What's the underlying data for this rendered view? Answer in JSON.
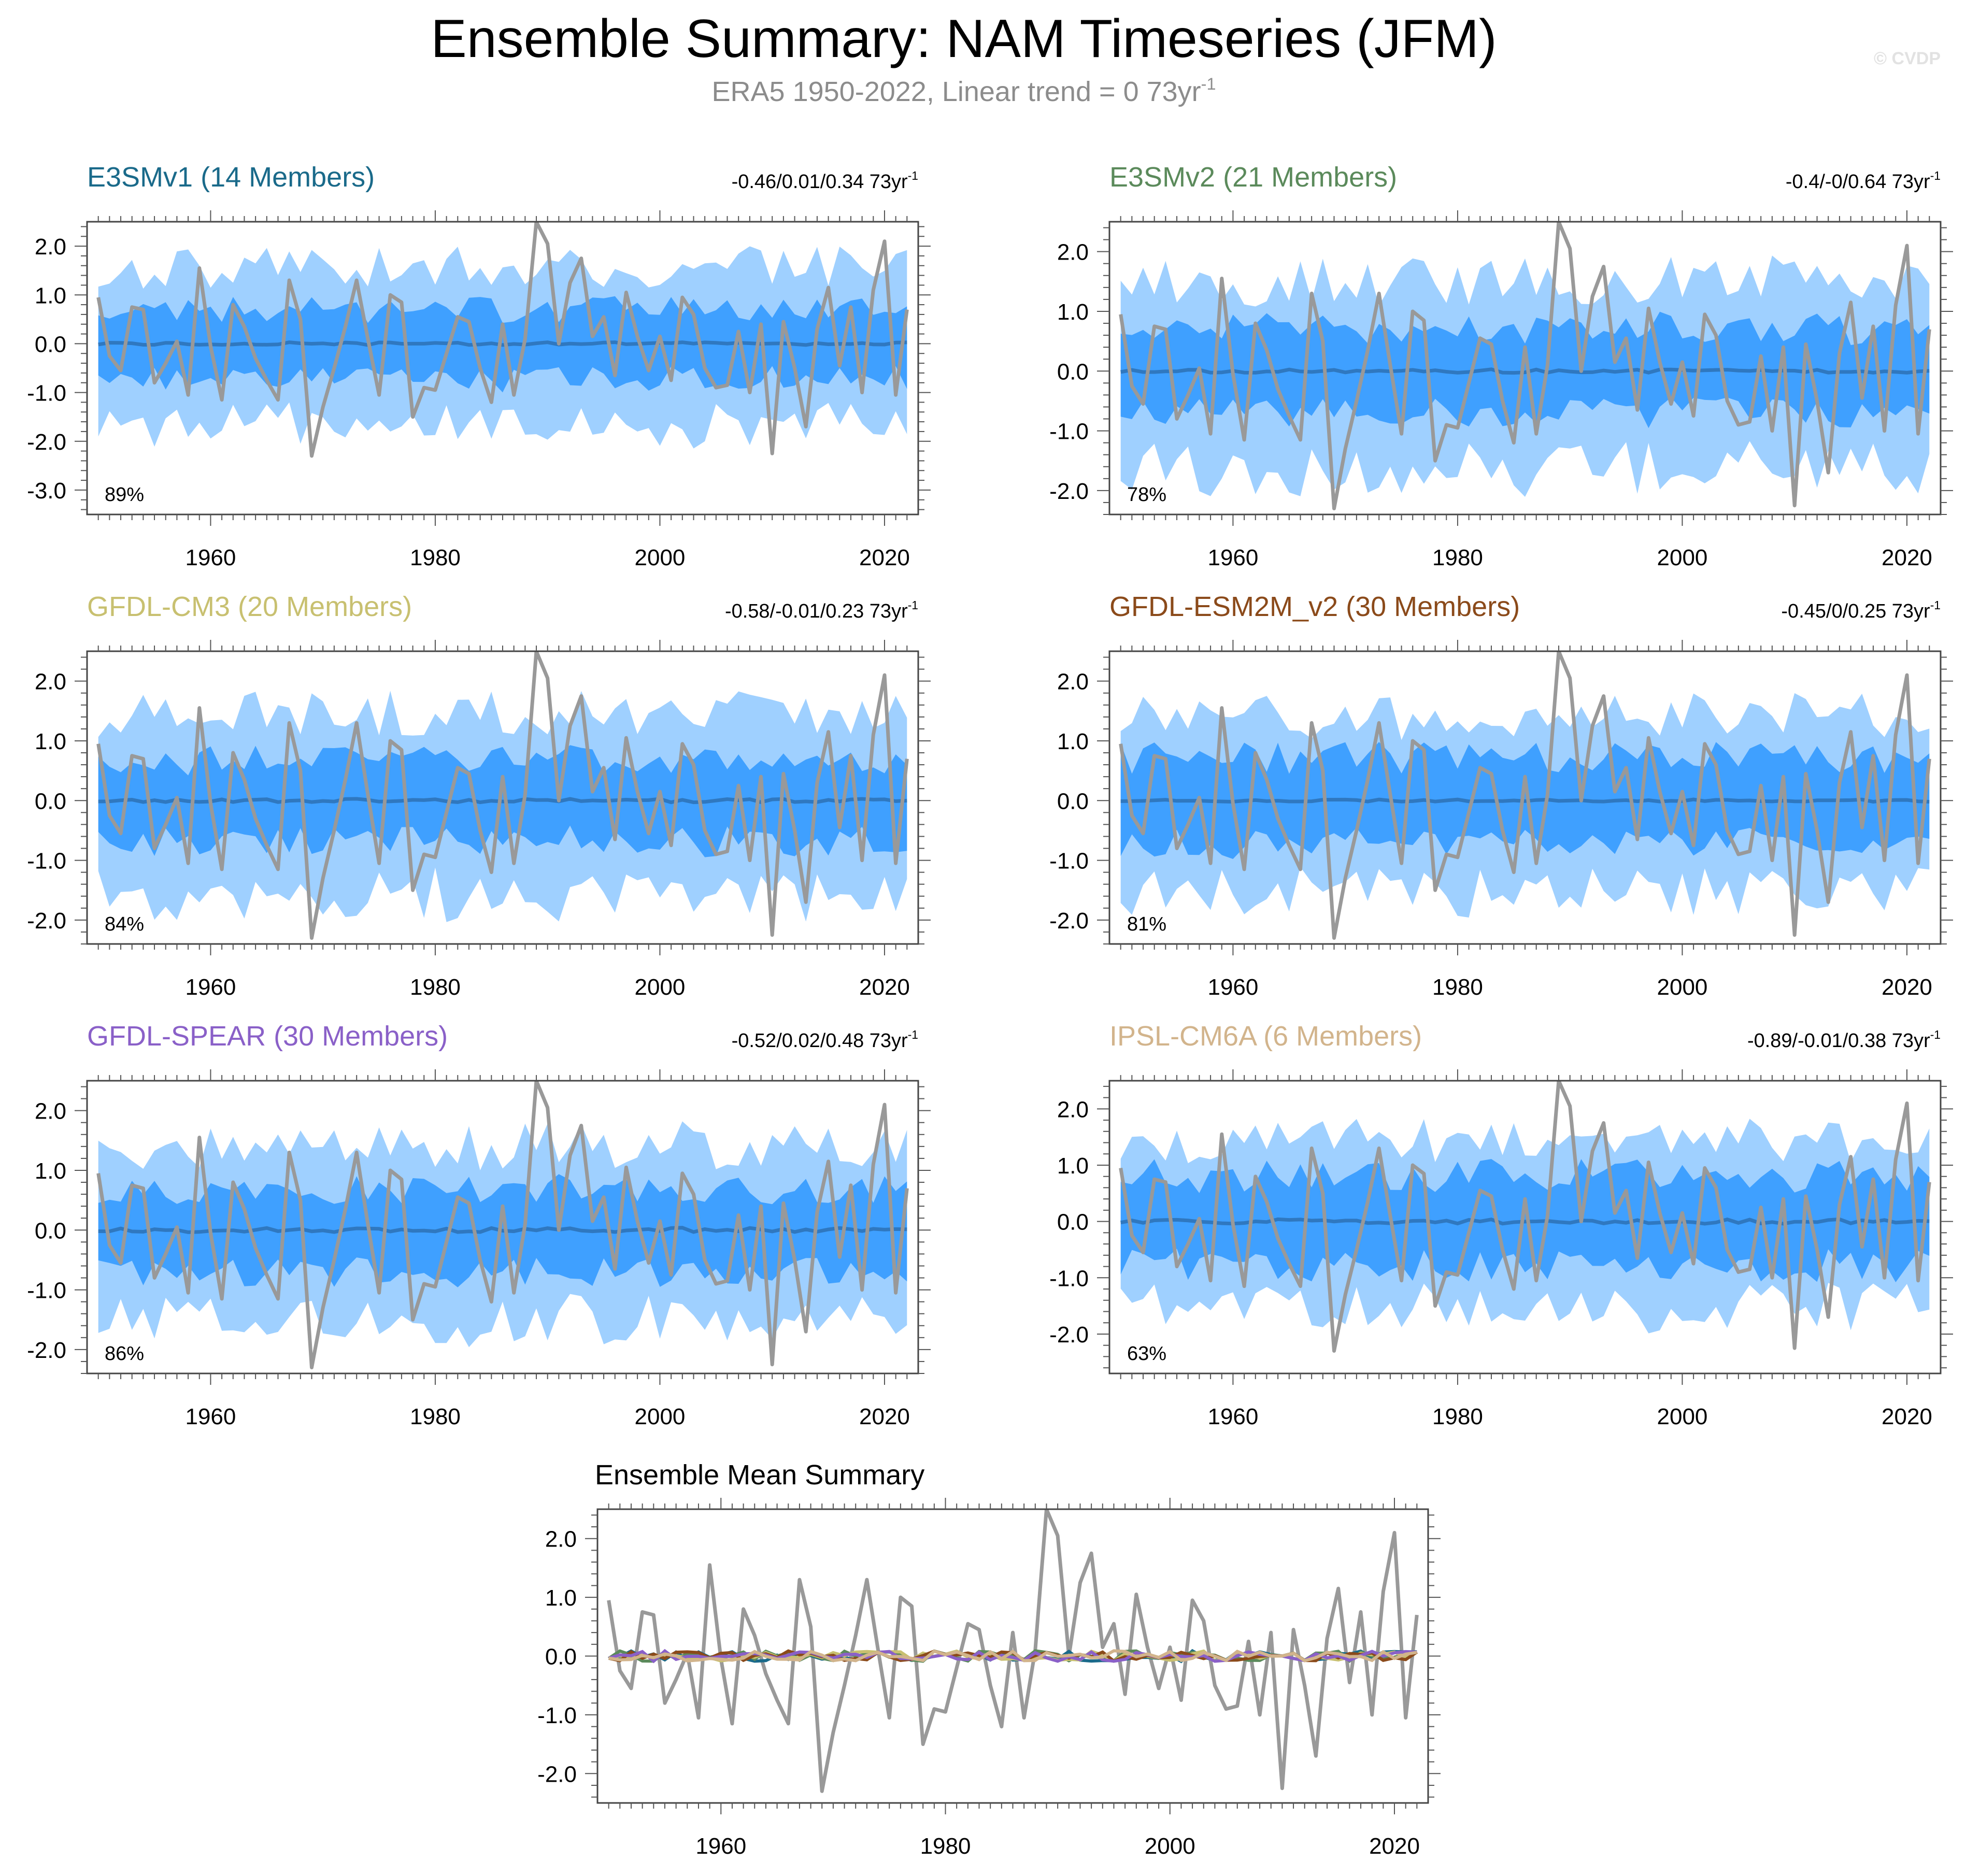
{
  "title": "Ensemble Summary: NAM Timeseries (JFM)",
  "subtitle": "ERA5 1950-2022, Linear trend = 0 73yr",
  "subtitle_sup": "-1",
  "watermark": "© CVDP",
  "colors": {
    "band_outer": "#9fd0ff",
    "band_inner": "#3fa0ff",
    "ens_mean": "#2f78c0",
    "obs": "#999999"
  },
  "x_ticks": [
    1960,
    1980,
    2000,
    2020
  ],
  "chart_data": [
    {
      "type": "line",
      "title": "E3SMv1 (14 Members)",
      "title_color": "#1a6a8a",
      "trend_text": "-0.46/0.01/0.34 73yr",
      "trend_sup": "-1",
      "percent_label": "89%",
      "xlim": [
        1949,
        2023
      ],
      "ylim": [
        -3.5,
        2.5
      ],
      "yticks": [
        2.0,
        1.0,
        0.0,
        -1.0,
        -2.0,
        -3.0
      ],
      "ytick_labels": [
        "2.0",
        "1.0",
        "0.0",
        "-1.0",
        "-2.0",
        "-3.0"
      ],
      "outer_amp": 1.6,
      "inner_amp": 0.75,
      "mean_amp": 0.03,
      "seed": 11
    },
    {
      "type": "line",
      "title": "E3SMv2 (21 Members)",
      "title_color": "#5b8a5b",
      "trend_text": "-0.4/-0/0.64 73yr",
      "trend_sup": "-1",
      "percent_label": "78%",
      "xlim": [
        1949,
        2023
      ],
      "ylim": [
        -2.4,
        2.5
      ],
      "yticks": [
        2.0,
        1.0,
        0.0,
        -1.0,
        -2.0
      ],
      "ytick_labels": [
        "2.0",
        "1.0",
        "0.0",
        "-1.0",
        "-2.0"
      ],
      "outer_amp": 1.55,
      "inner_amp": 0.75,
      "mean_amp": 0.03,
      "seed": 23
    },
    {
      "type": "line",
      "title": "GFDL-CM3 (20 Members)",
      "title_color": "#c8c070",
      "trend_text": "-0.58/-0.01/0.23 73yr",
      "trend_sup": "-1",
      "percent_label": "84%",
      "xlim": [
        1949,
        2023
      ],
      "ylim": [
        -2.4,
        2.5
      ],
      "yticks": [
        2.0,
        1.0,
        0.0,
        -1.0,
        -2.0
      ],
      "ytick_labels": [
        "2.0",
        "1.0",
        "0.0",
        "-1.0",
        "-2.0"
      ],
      "outer_amp": 1.5,
      "inner_amp": 0.72,
      "mean_amp": 0.03,
      "seed": 37
    },
    {
      "type": "line",
      "title": "GFDL-ESM2M_v2 (30 Members)",
      "title_color": "#8b4a1a",
      "trend_text": "-0.45/0/0.25 73yr",
      "trend_sup": "-1",
      "percent_label": "81%",
      "xlim": [
        1949,
        2023
      ],
      "ylim": [
        -2.4,
        2.5
      ],
      "yticks": [
        2.0,
        1.0,
        0.0,
        -1.0,
        -2.0
      ],
      "ytick_labels": [
        "2.0",
        "1.0",
        "0.0",
        "-1.0",
        "-2.0"
      ],
      "outer_amp": 1.45,
      "inner_amp": 0.75,
      "mean_amp": 0.02,
      "seed": 41
    },
    {
      "type": "line",
      "title": "GFDL-SPEAR (30 Members)",
      "title_color": "#8a60c8",
      "trend_text": "-0.52/0.02/0.48 73yr",
      "trend_sup": "-1",
      "percent_label": "86%",
      "xlim": [
        1949,
        2023
      ],
      "ylim": [
        -2.4,
        2.5
      ],
      "yticks": [
        2.0,
        1.0,
        0.0,
        -1.0,
        -2.0
      ],
      "ytick_labels": [
        "2.0",
        "1.0",
        "0.0",
        "-1.0",
        "-2.0"
      ],
      "outer_amp": 1.45,
      "inner_amp": 0.72,
      "mean_amp": 0.04,
      "seed": 53
    },
    {
      "type": "line",
      "title": "IPSL-CM6A (6 Members)",
      "title_color": "#d2b48c",
      "trend_text": "-0.89/-0.01/0.38 73yr",
      "trend_sup": "-1",
      "percent_label": "63%",
      "xlim": [
        1949,
        2023
      ],
      "ylim": [
        -2.7,
        2.5
      ],
      "yticks": [
        2.0,
        1.0,
        0.0,
        -1.0,
        -2.0
      ],
      "ytick_labels": [
        "2.0",
        "1.0",
        "0.0",
        "-1.0",
        "-2.0"
      ],
      "outer_amp": 1.45,
      "inner_amp": 0.85,
      "mean_amp": 0.04,
      "seed": 67
    }
  ],
  "summary_chart": {
    "type": "line",
    "title": "Ensemble Mean Summary",
    "xlim": [
      1949,
      2023
    ],
    "ylim": [
      -2.5,
      2.5
    ],
    "yticks": [
      2.0,
      1.0,
      0.0,
      -1.0,
      -2.0
    ],
    "ytick_labels": [
      "2.0",
      "1.0",
      "0.0",
      "-1.0",
      "-2.0"
    ],
    "series_colors": [
      "#1a6a8a",
      "#5b8a5b",
      "#c8c070",
      "#8b4a1a",
      "#8a60c8",
      "#d2b48c"
    ]
  },
  "observed_series": {
    "name": "ERA5",
    "x": [
      1950,
      1951,
      1952,
      1953,
      1954,
      1955,
      1956,
      1957,
      1958,
      1959,
      1960,
      1961,
      1962,
      1963,
      1964,
      1965,
      1966,
      1967,
      1968,
      1969,
      1970,
      1971,
      1972,
      1973,
      1974,
      1975,
      1976,
      1977,
      1978,
      1979,
      1980,
      1981,
      1982,
      1983,
      1984,
      1985,
      1986,
      1987,
      1988,
      1989,
      1990,
      1991,
      1992,
      1993,
      1994,
      1995,
      1996,
      1997,
      1998,
      1999,
      2000,
      2001,
      2002,
      2003,
      2004,
      2005,
      2006,
      2007,
      2008,
      2009,
      2010,
      2011,
      2012,
      2013,
      2014,
      2015,
      2016,
      2017,
      2018,
      2019,
      2020,
      2021,
      2022
    ],
    "values": [
      0.95,
      -0.25,
      -0.55,
      0.75,
      0.7,
      -0.8,
      -0.4,
      0.05,
      -1.05,
      1.55,
      -0.05,
      -1.15,
      0.8,
      0.35,
      -0.3,
      -0.75,
      -1.15,
      1.3,
      0.5,
      -2.3,
      -1.3,
      -0.5,
      0.35,
      1.3,
      0.1,
      -1.05,
      1.0,
      0.85,
      -1.5,
      -0.9,
      -0.95,
      -0.2,
      0.55,
      0.45,
      -0.5,
      -1.2,
      0.4,
      -1.05,
      0.1,
      2.5,
      2.05,
      0.0,
      1.25,
      1.75,
      0.15,
      0.55,
      -0.65,
      1.05,
      0.15,
      -0.55,
      0.15,
      -0.75,
      0.95,
      0.6,
      -0.5,
      -0.9,
      -0.85,
      0.25,
      -1.0,
      0.4,
      -2.25,
      0.45,
      -0.5,
      -1.7,
      0.3,
      1.15,
      -0.45,
      0.75,
      -1.0,
      1.1,
      2.1,
      -1.05,
      0.7
    ]
  }
}
